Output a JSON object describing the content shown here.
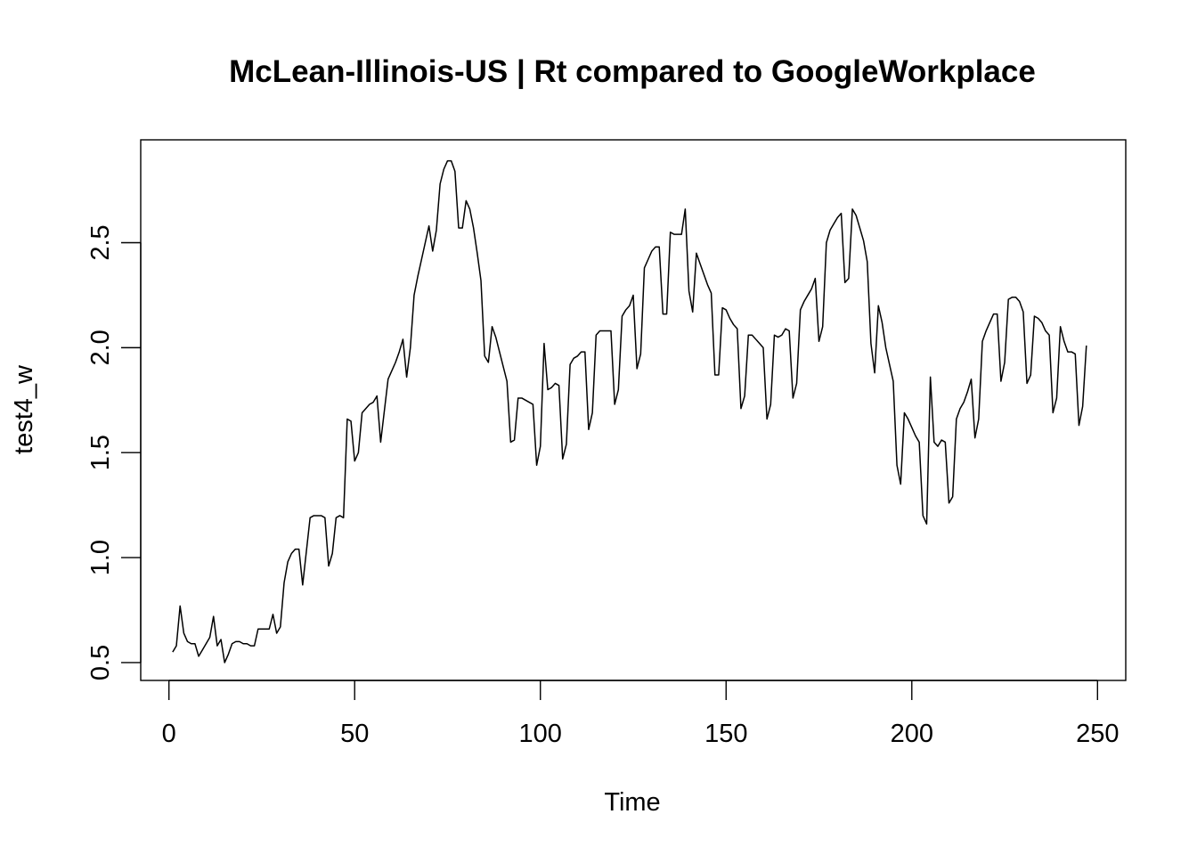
{
  "chart_data": {
    "type": "line",
    "title": "McLean-Illinois-US | Rt compared to GoogleWorkplace",
    "xlabel": "Time",
    "ylabel": "test4_w",
    "xlim": [
      -7.6,
      257.6
    ],
    "ylim": [
      0.415,
      2.99
    ],
    "x_ticks": [
      0,
      50,
      100,
      150,
      200,
      250
    ],
    "x_tick_labels": [
      "0",
      "50",
      "100",
      "150",
      "200",
      "250"
    ],
    "y_ticks": [
      0.5,
      1.0,
      1.5,
      2.0,
      2.5
    ],
    "y_tick_labels": [
      "0.5",
      "1.0",
      "1.5",
      "2.0",
      "2.5"
    ],
    "grid": false,
    "color": "#000000",
    "x_start": 1,
    "values": [
      0.55,
      0.58,
      0.77,
      0.64,
      0.6,
      0.59,
      0.59,
      0.53,
      0.56,
      0.59,
      0.62,
      0.72,
      0.58,
      0.61,
      0.5,
      0.54,
      0.59,
      0.6,
      0.6,
      0.59,
      0.59,
      0.58,
      0.58,
      0.66,
      0.66,
      0.66,
      0.66,
      0.73,
      0.64,
      0.67,
      0.88,
      0.98,
      1.02,
      1.04,
      1.04,
      0.87,
      1.03,
      1.19,
      1.2,
      1.2,
      1.2,
      1.19,
      0.96,
      1.02,
      1.19,
      1.2,
      1.19,
      1.66,
      1.65,
      1.46,
      1.5,
      1.69,
      1.71,
      1.73,
      1.74,
      1.77,
      1.55,
      1.7,
      1.85,
      1.89,
      1.93,
      1.98,
      2.04,
      1.86,
      2.0,
      2.25,
      2.34,
      2.42,
      2.5,
      2.58,
      2.46,
      2.56,
      2.78,
      2.85,
      2.89,
      2.89,
      2.84,
      2.57,
      2.57,
      2.7,
      2.66,
      2.57,
      2.45,
      2.32,
      1.96,
      1.93,
      2.1,
      2.05,
      1.98,
      1.91,
      1.84,
      1.55,
      1.56,
      1.76,
      1.76,
      1.75,
      1.74,
      1.73,
      1.44,
      1.53,
      2.02,
      1.8,
      1.81,
      1.83,
      1.82,
      1.47,
      1.54,
      1.92,
      1.95,
      1.96,
      1.98,
      1.98,
      1.61,
      1.69,
      2.06,
      2.08,
      2.08,
      2.08,
      2.08,
      1.73,
      1.8,
      2.15,
      2.18,
      2.2,
      2.25,
      1.9,
      1.97,
      2.38,
      2.42,
      2.46,
      2.48,
      2.48,
      2.16,
      2.16,
      2.55,
      2.54,
      2.54,
      2.54,
      2.66,
      2.27,
      2.17,
      2.45,
      2.4,
      2.35,
      2.3,
      2.26,
      1.87,
      1.87,
      2.19,
      2.18,
      2.14,
      2.11,
      2.09,
      1.71,
      1.77,
      2.06,
      2.06,
      2.04,
      2.02,
      2.0,
      1.66,
      1.73,
      2.06,
      2.05,
      2.06,
      2.09,
      2.08,
      1.76,
      1.83,
      2.18,
      2.22,
      2.25,
      2.28,
      2.33,
      2.03,
      2.1,
      2.5,
      2.56,
      2.59,
      2.62,
      2.64,
      2.31,
      2.33,
      2.66,
      2.63,
      2.57,
      2.51,
      2.41,
      2.02,
      1.88,
      2.2,
      2.12,
      2.0,
      1.92,
      1.84,
      1.44,
      1.35,
      1.69,
      1.66,
      1.62,
      1.58,
      1.55,
      1.2,
      1.16,
      1.86,
      1.55,
      1.53,
      1.56,
      1.55,
      1.26,
      1.29,
      1.66,
      1.71,
      1.74,
      1.79,
      1.85,
      1.57,
      1.66,
      2.03,
      2.08,
      2.12,
      2.16,
      2.16,
      1.84,
      1.93,
      2.23,
      2.24,
      2.24,
      2.22,
      2.17,
      1.83,
      1.87,
      2.15,
      2.14,
      2.12,
      2.08,
      2.06,
      1.69,
      1.76,
      2.1,
      2.03,
      1.98,
      1.98,
      1.97,
      1.63,
      1.72,
      2.01
    ]
  }
}
